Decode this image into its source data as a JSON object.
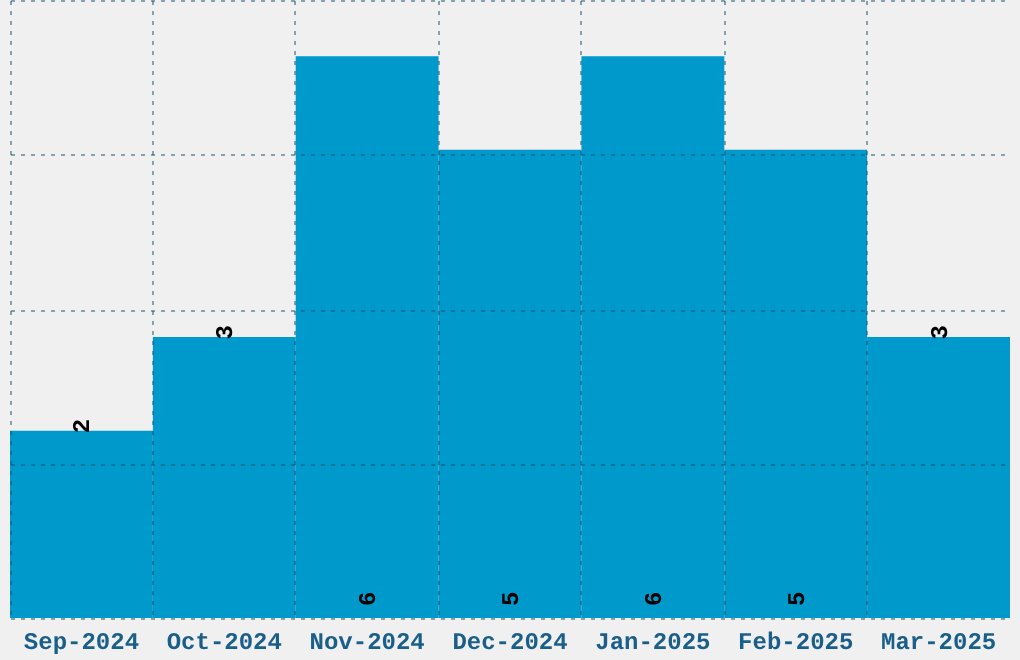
{
  "chart_data": {
    "type": "bar",
    "categories": [
      "Sep-2024",
      "Oct-2024",
      "Nov-2024",
      "Dec-2024",
      "Jan-2025",
      "Feb-2025",
      "Mar-2025"
    ],
    "values": [
      2,
      3,
      6,
      5,
      6,
      5,
      3
    ],
    "color": "#0099cc",
    "data_labels": true,
    "grid": true,
    "tick_labels": "x",
    "ylim": [
      0,
      6.6
    ],
    "yticks": [
      {
        "value": 0,
        "label": null
      },
      {
        "value": 1.65,
        "label": null
      },
      {
        "value": 3.3,
        "label": null
      },
      {
        "value": 4.95,
        "label": null
      },
      {
        "value": 6.6,
        "label": null
      }
    ]
  }
}
